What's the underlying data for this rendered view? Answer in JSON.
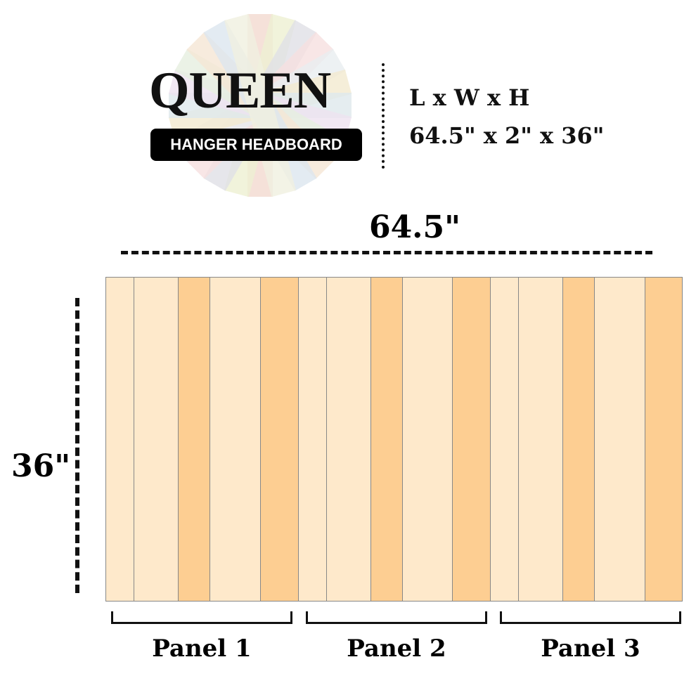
{
  "header": {
    "title": "QUEEN",
    "subtitle": "HANGER HEADBOARD",
    "dims_label": "L x W x H",
    "dims_value": "64.5\" x 2\" x 36\""
  },
  "diagram": {
    "width_label": "64.5\"",
    "height_label": "36\"",
    "colors": {
      "light": "#FEE9CB",
      "dark": "#FDCE92",
      "outline": "#888888"
    },
    "panels": [
      {
        "label": "Panel 1",
        "boards": [
          "light",
          "light",
          "dark",
          "light",
          "dark"
        ]
      },
      {
        "label": "Panel 2",
        "boards": [
          "light",
          "light",
          "dark",
          "light",
          "dark"
        ]
      },
      {
        "label": "Panel 3",
        "boards": [
          "light",
          "light",
          "dark",
          "light",
          "dark"
        ]
      }
    ]
  }
}
